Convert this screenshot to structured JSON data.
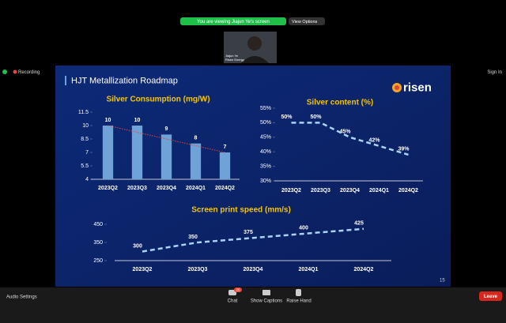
{
  "zoom": {
    "banner": "You are viewing Jiajun Ye's screen",
    "view_options": "View Options",
    "participant": {
      "name": "Jiajun Ye",
      "org": "Risen Energy"
    },
    "recording": "Recording",
    "sign_in": "Sign In",
    "audio_settings": "Audio Settings",
    "chat": "Chat",
    "chat_badge": "26",
    "captions": "Show Captions",
    "raise_hand": "Raise Hand",
    "leave": "Leave"
  },
  "slide": {
    "title": "HJT Metallization Roadmap",
    "logo": "risen",
    "page": "15",
    "charts": [
      {
        "type": "bar",
        "title": "Silver Consumption  (mg/W)",
        "categories": [
          "2023Q2",
          "2023Q3",
          "2023Q4",
          "2024Q1",
          "2024Q2"
        ],
        "values": [
          10,
          10,
          9,
          8,
          7
        ],
        "color": "#6fa3d8",
        "ylim": [
          4,
          11.5
        ],
        "yticks": [
          4,
          5.5,
          7,
          8.5,
          10,
          11.5
        ],
        "trendline": true,
        "trend_color": "#e0463a"
      },
      {
        "type": "line",
        "title": "Silver content  (%)",
        "categories": [
          "2023Q2",
          "2023Q3",
          "2023Q4",
          "2024Q1",
          "2024Q2"
        ],
        "values": [
          50,
          50,
          45,
          42,
          39
        ],
        "value_labels": [
          "50%",
          "50%",
          "45%",
          "42%",
          "39%"
        ],
        "color": "#a9d4f5",
        "ylim": [
          30,
          55
        ],
        "yticks": [
          {
            "value": 30,
            "label": "30%"
          },
          {
            "value": 35,
            "label": "35%"
          },
          {
            "value": 40,
            "label": "40%"
          },
          {
            "value": 45,
            "label": "45%"
          },
          {
            "value": 50,
            "label": "50%"
          },
          {
            "value": 55,
            "label": "55%"
          }
        ]
      },
      {
        "type": "line",
        "title": "Screen print speed  (mm/s)",
        "categories": [
          "2023Q2",
          "2023Q3",
          "2023Q4",
          "2024Q1",
          "2024Q2"
        ],
        "values": [
          300,
          350,
          375,
          400,
          425
        ],
        "color": "#a9d4f5",
        "ylim": [
          250,
          450
        ],
        "yticks": [
          250,
          350,
          450
        ]
      }
    ]
  }
}
